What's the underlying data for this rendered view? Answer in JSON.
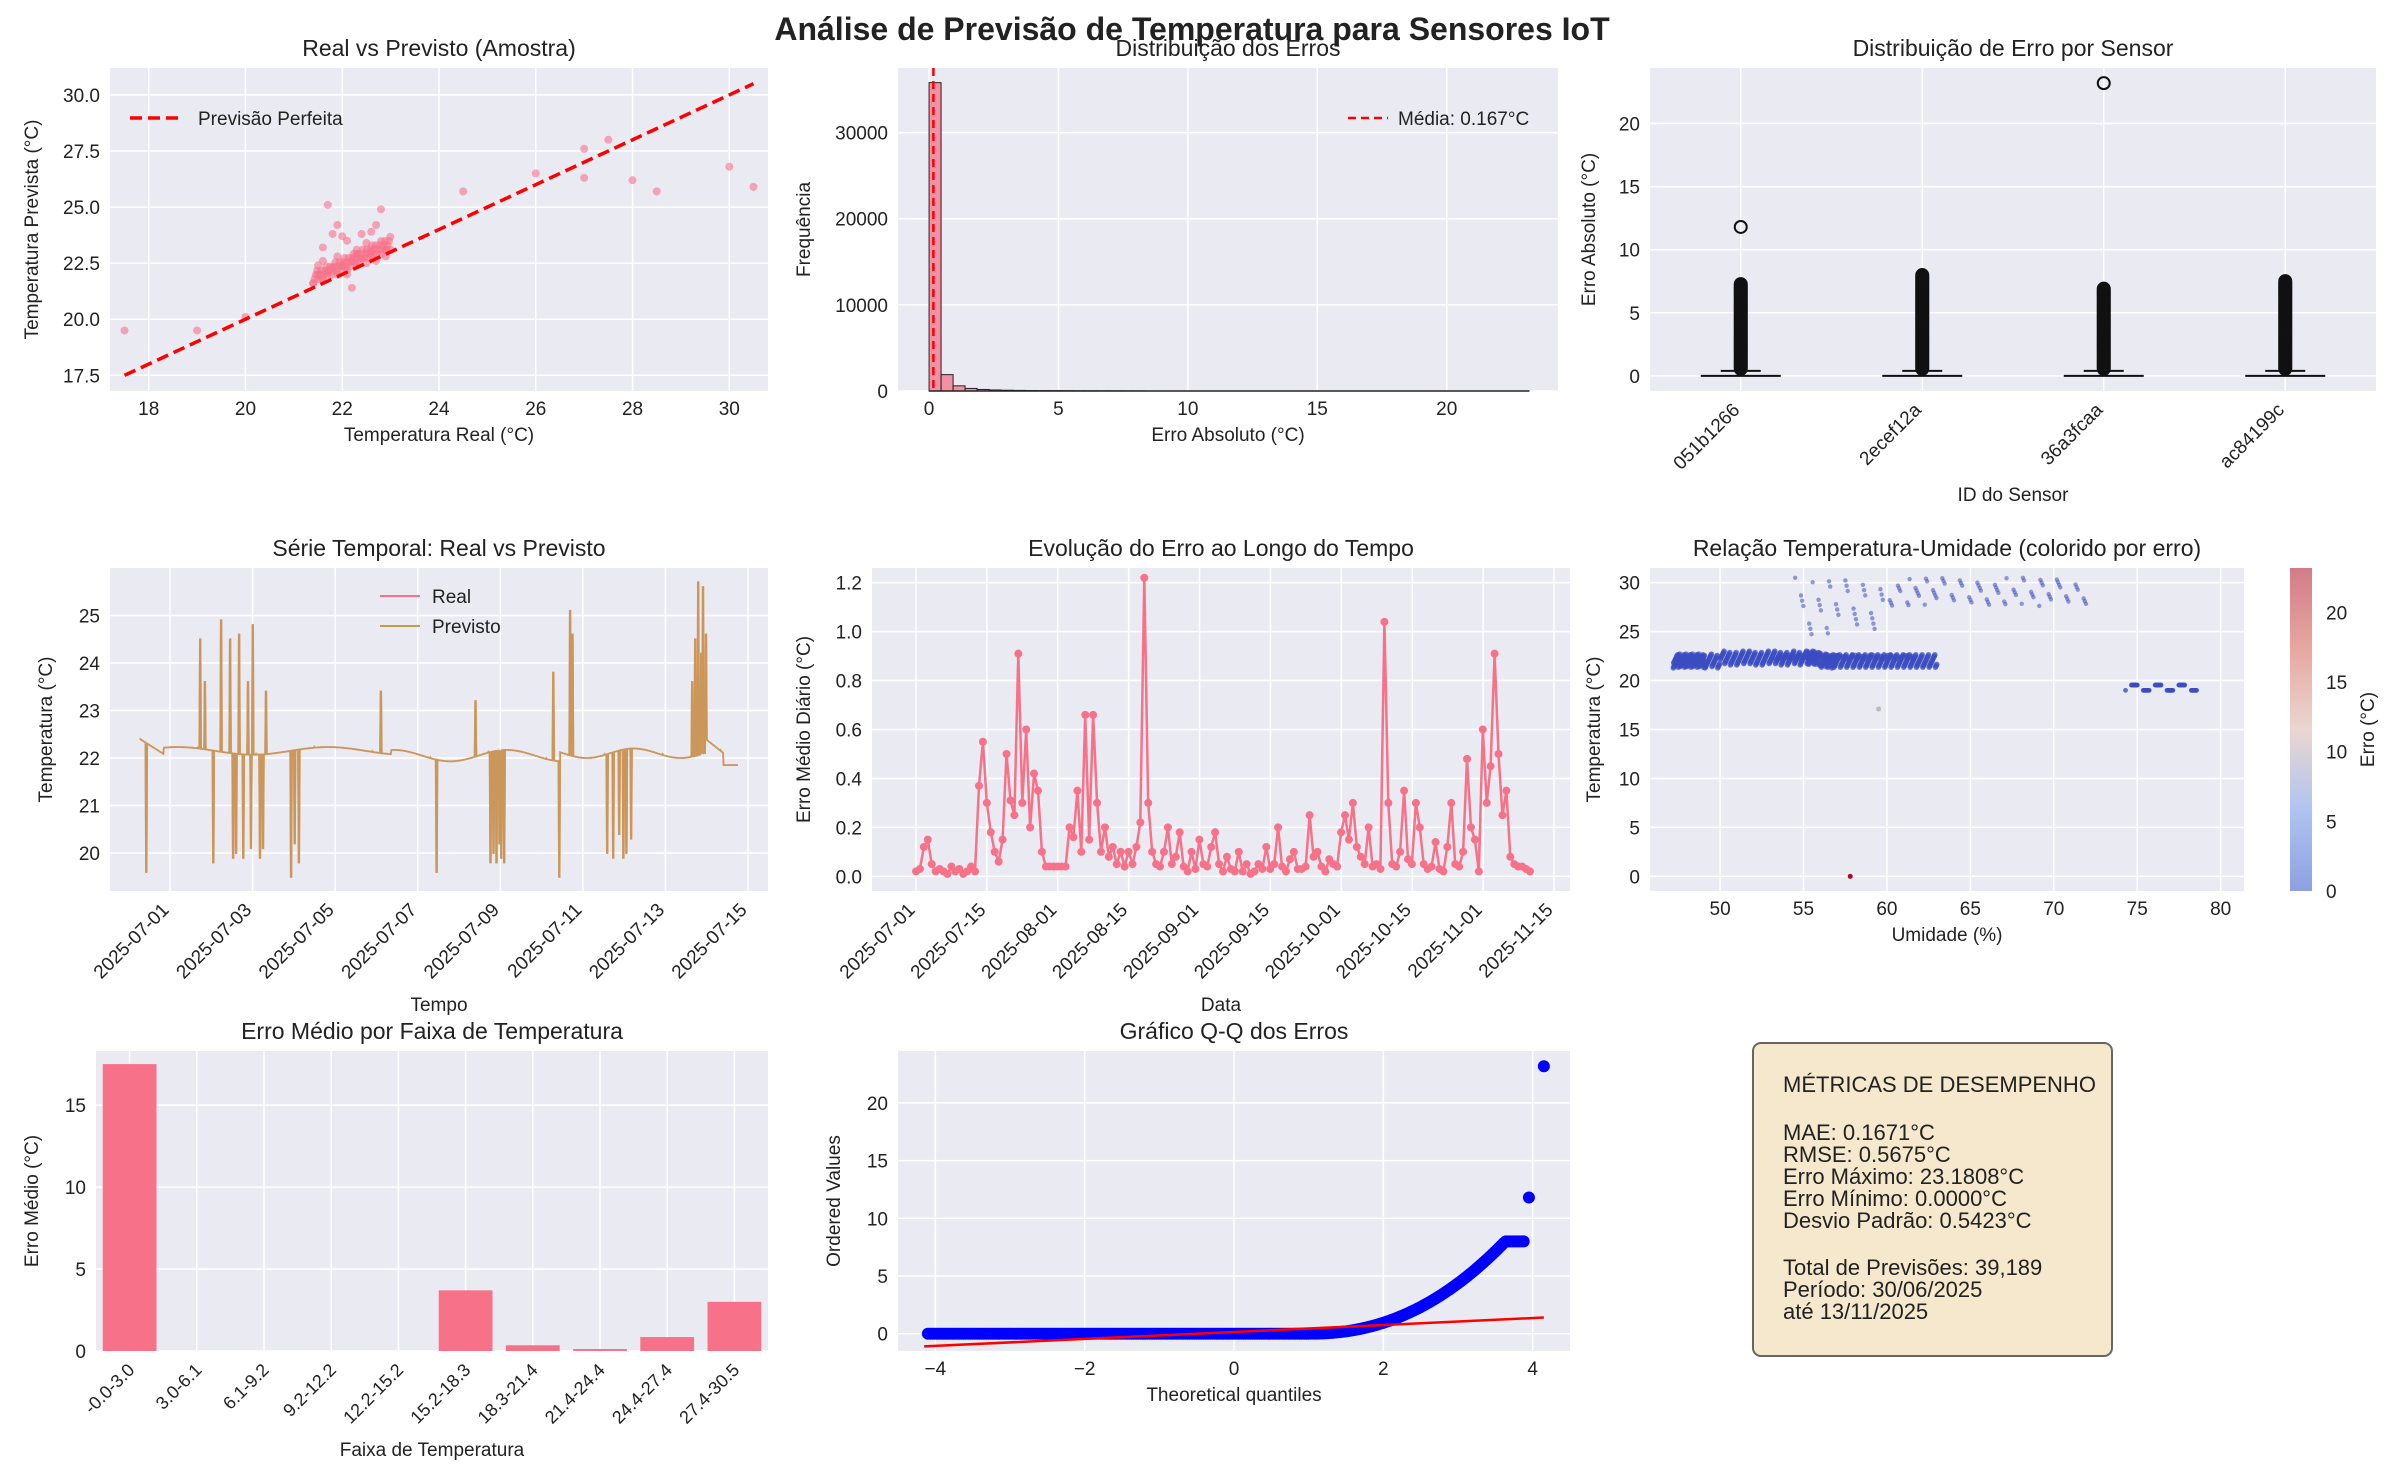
{
  "figure_title": "Análise de Previsão de Temperatura para Sensores IoT",
  "colors": {
    "pink": "#f77189",
    "tan": "#c39a4d",
    "red": "#ff0000",
    "blue": "#0000ff",
    "panel_bg": "#eaeaf2",
    "box_bg": "#f5e8cc"
  },
  "chart_data": [
    {
      "id": "scatter",
      "type": "scatter",
      "title": "Real vs Previsto (Amostra)",
      "xlabel": "Temperatura Real (°C)",
      "ylabel": "Temperatura Prevista (°C)",
      "xlim": [
        17.2,
        30.8
      ],
      "ylim": [
        16.8,
        31.2
      ],
      "xticks": [
        18,
        20,
        22,
        24,
        26,
        28,
        30
      ],
      "yticks": [
        17.5,
        20.0,
        22.5,
        25.0,
        27.5,
        30.0
      ],
      "ytick_labels": [
        "17.5",
        "20.0",
        "22.5",
        "25.0",
        "27.5",
        "30.0"
      ],
      "legend": "Previsão Perfeita",
      "line": [
        [
          17.5,
          17.5
        ],
        [
          30.5,
          30.5
        ]
      ],
      "points": [
        [
          17.5,
          19.5
        ],
        [
          19.0,
          19.5
        ],
        [
          20.0,
          20.1
        ],
        [
          21.4,
          21.6
        ],
        [
          21.5,
          22.0
        ],
        [
          21.6,
          22.6
        ],
        [
          21.7,
          25.1
        ],
        [
          21.8,
          23.8
        ],
        [
          21.9,
          24.2
        ],
        [
          22.0,
          23.7
        ],
        [
          22.1,
          22.0
        ],
        [
          22.2,
          21.4
        ],
        [
          22.3,
          22.9
        ],
        [
          22.4,
          23.8
        ],
        [
          22.5,
          23.4
        ],
        [
          22.6,
          23.9
        ],
        [
          22.7,
          24.2
        ],
        [
          22.8,
          24.9
        ],
        [
          22.9,
          23.1
        ],
        [
          21.5,
          22.4
        ],
        [
          21.6,
          21.8
        ],
        [
          21.7,
          22.1
        ],
        [
          21.8,
          22.3
        ],
        [
          21.9,
          22.0
        ],
        [
          22.0,
          22.4
        ],
        [
          22.1,
          22.2
        ],
        [
          22.2,
          22.6
        ],
        [
          22.3,
          22.4
        ],
        [
          22.4,
          22.7
        ],
        [
          22.5,
          22.5
        ],
        [
          22.6,
          22.8
        ],
        [
          22.7,
          22.6
        ],
        [
          22.8,
          22.9
        ],
        [
          22.9,
          22.8
        ],
        [
          23.0,
          23.1
        ],
        [
          21.6,
          23.2
        ],
        [
          22.1,
          23.5
        ],
        [
          22.6,
          23.0
        ],
        [
          21.9,
          22.8
        ],
        [
          22.3,
          23.1
        ],
        [
          24.5,
          25.7
        ],
        [
          26.0,
          26.5
        ],
        [
          27.0,
          26.3
        ],
        [
          27.0,
          27.6
        ],
        [
          27.5,
          28.0
        ],
        [
          28.0,
          26.2
        ],
        [
          28.5,
          25.7
        ],
        [
          30.0,
          26.8
        ],
        [
          30.5,
          25.9
        ]
      ]
    },
    {
      "id": "hist",
      "type": "bar",
      "title": "Distribuição dos Erros",
      "xlabel": "Erro Absoluto (°C)",
      "ylabel": "Frequência",
      "xlim": [
        -1.2,
        24.3
      ],
      "ylim": [
        0,
        37500
      ],
      "xticks": [
        0,
        5,
        10,
        15,
        20
      ],
      "yticks": [
        0,
        10000,
        20000,
        30000
      ],
      "legend": "Média: 0.167°C",
      "mean": 0.167,
      "bin_width": 0.464,
      "bins": [
        35800,
        1900,
        600,
        300,
        180,
        120,
        90,
        70,
        55,
        45,
        40,
        35,
        30,
        25,
        20,
        18,
        15,
        10
      ]
    },
    {
      "id": "box",
      "type": "box",
      "title": "Distribuição de Erro por Sensor",
      "xlabel": "ID do Sensor",
      "ylabel": "Erro Absoluto (°C)",
      "ylim": [
        -1.2,
        24.4
      ],
      "yticks": [
        0,
        5,
        10,
        15,
        20
      ],
      "categories": [
        "051b1266",
        "2ecef12a",
        "36a3fcaa",
        "ac84199c"
      ],
      "whisker_max": [
        0.4,
        0.4,
        0.4,
        0.4
      ],
      "outlier_max": [
        7.3,
        8.0,
        7.0,
        7.6
      ],
      "far_outliers": [
        [
          11.8
        ],
        [],
        [
          23.2
        ],
        []
      ]
    },
    {
      "id": "timeseries",
      "type": "line",
      "title": "Série Temporal: Real vs Previsto",
      "xlabel": "Tempo",
      "ylabel": "Temperatura (°C)",
      "ylim": [
        19.2,
        26.0
      ],
      "yticks": [
        20,
        21,
        22,
        23,
        24,
        25
      ],
      "xtick_labels": [
        "2025-07-01",
        "2025-07-03",
        "2025-07-05",
        "2025-07-07",
        "2025-07-09",
        "2025-07-11",
        "2025-07-13",
        "2025-07-15"
      ],
      "series_names": [
        "Real",
        "Previsto"
      ]
    },
    {
      "id": "dailyerr",
      "type": "line",
      "title": "Evolução do Erro ao Longo do Tempo",
      "xlabel": "Data",
      "ylabel": "Erro Médio Diário (°C)",
      "ylim": [
        -0.06,
        1.26
      ],
      "yticks": [
        0.0,
        0.2,
        0.4,
        0.6,
        0.8,
        1.0,
        1.2
      ],
      "ytick_labels": [
        "0.0",
        "0.2",
        "0.4",
        "0.6",
        "0.8",
        "1.0",
        "1.2"
      ],
      "xtick_labels": [
        "2025-07-01",
        "2025-07-15",
        "2025-08-01",
        "2025-08-15",
        "2025-09-01",
        "2025-09-15",
        "2025-10-01",
        "2025-10-15",
        "2025-11-01",
        "2025-11-15"
      ],
      "values": [
        0.02,
        0.03,
        0.12,
        0.15,
        0.05,
        0.02,
        0.03,
        0.02,
        0.01,
        0.04,
        0.02,
        0.03,
        0.01,
        0.02,
        0.04,
        0.02,
        0.37,
        0.55,
        0.3,
        0.18,
        0.1,
        0.06,
        0.15,
        0.5,
        0.31,
        0.25,
        0.91,
        0.3,
        0.6,
        0.2,
        0.42,
        0.35,
        0.1,
        0.04,
        0.04,
        0.04,
        0.04,
        0.04,
        0.04,
        0.2,
        0.16,
        0.35,
        0.1,
        0.66,
        0.15,
        0.66,
        0.3,
        0.1,
        0.2,
        0.08,
        0.12,
        0.05,
        0.1,
        0.04,
        0.1,
        0.05,
        0.12,
        0.22,
        1.22,
        0.3,
        0.1,
        0.05,
        0.04,
        0.1,
        0.2,
        0.05,
        0.08,
        0.18,
        0.04,
        0.02,
        0.1,
        0.03,
        0.15,
        0.05,
        0.04,
        0.12,
        0.18,
        0.05,
        0.02,
        0.08,
        0.03,
        0.02,
        0.1,
        0.02,
        0.05,
        0.01,
        0.02,
        0.05,
        0.03,
        0.12,
        0.03,
        0.05,
        0.2,
        0.04,
        0.02,
        0.07,
        0.1,
        0.03,
        0.03,
        0.04,
        0.25,
        0.08,
        0.1,
        0.04,
        0.02,
        0.07,
        0.05,
        0.04,
        0.18,
        0.25,
        0.15,
        0.3,
        0.12,
        0.08,
        0.05,
        0.2,
        0.04,
        0.05,
        0.03,
        1.04,
        0.3,
        0.05,
        0.04,
        0.1,
        0.35,
        0.07,
        0.05,
        0.3,
        0.2,
        0.05,
        0.03,
        0.04,
        0.14,
        0.03,
        0.02,
        0.12,
        0.3,
        0.05,
        0.04,
        0.1,
        0.48,
        0.2,
        0.15,
        0.02,
        0.6,
        0.3,
        0.45,
        0.91,
        0.5,
        0.25,
        0.35,
        0.08,
        0.05,
        0.04,
        0.04,
        0.03,
        0.02
      ]
    },
    {
      "id": "humidity",
      "type": "scatter",
      "title": "Relação Temperatura-Umidade (colorido por erro)",
      "xlabel": "Umidade (%)",
      "ylabel": "Temperatura (°C)",
      "colorbar_label": "Erro (°C)",
      "xlim": [
        45.8,
        81.4
      ],
      "ylim": [
        -1.5,
        31.5
      ],
      "xticks": [
        50,
        55,
        60,
        65,
        70,
        75,
        80
      ],
      "yticks": [
        0,
        5,
        10,
        15,
        20,
        25,
        30
      ],
      "colorbar_ticks": [
        0,
        5,
        10,
        15,
        20
      ],
      "colorbar_max": 23.18
    },
    {
      "id": "rangeerr",
      "type": "bar",
      "title": "Erro Médio por Faixa de Temperatura",
      "xlabel": "Faixa de Temperatura",
      "ylabel": "Erro Médio (°C)",
      "ylim": [
        0,
        18.3
      ],
      "yticks": [
        0,
        5,
        10,
        15
      ],
      "categories": [
        "-0.0-3.0",
        "3.0-6.1",
        "6.1-9.2",
        "9.2-12.2",
        "12.2-15.2",
        "15.2-18.3",
        "18.3-21.4",
        "21.4-24.4",
        "24.4-27.4",
        "27.4-30.5"
      ],
      "values": [
        17.5,
        0,
        0,
        0,
        0,
        3.7,
        0.35,
        0.12,
        0.85,
        3.0
      ]
    },
    {
      "id": "qq",
      "type": "scatter",
      "title": "Gráfico Q-Q dos Erros",
      "xlabel": "Theoretical quantiles",
      "ylabel": "Ordered Values",
      "xlim": [
        -4.5,
        4.5
      ],
      "ylim": [
        -1.5,
        24.5
      ],
      "xticks": [
        -4,
        -2,
        0,
        2,
        4
      ],
      "yticks": [
        0,
        5,
        10,
        15,
        20
      ],
      "fit_line": [
        [
          -4.15,
          -1.1
        ],
        [
          4.15,
          1.4
        ]
      ],
      "max_point": [
        4.15,
        23.18
      ],
      "second_point": [
        3.95,
        11.8
      ]
    }
  ],
  "metrics_box": {
    "heading": "MÉTRICAS DE DESEMPENHO",
    "lines": [
      "MAE: 0.1671°C",
      "RMSE: 0.5675°C",
      "Erro Máximo: 23.1808°C",
      "Erro Mínimo: 0.0000°C",
      "Desvio Padrão: 0.5423°C"
    ],
    "lines2": [
      "Total de Previsões: 39,189",
      "Período: 30/06/2025",
      "até 13/11/2025"
    ]
  }
}
